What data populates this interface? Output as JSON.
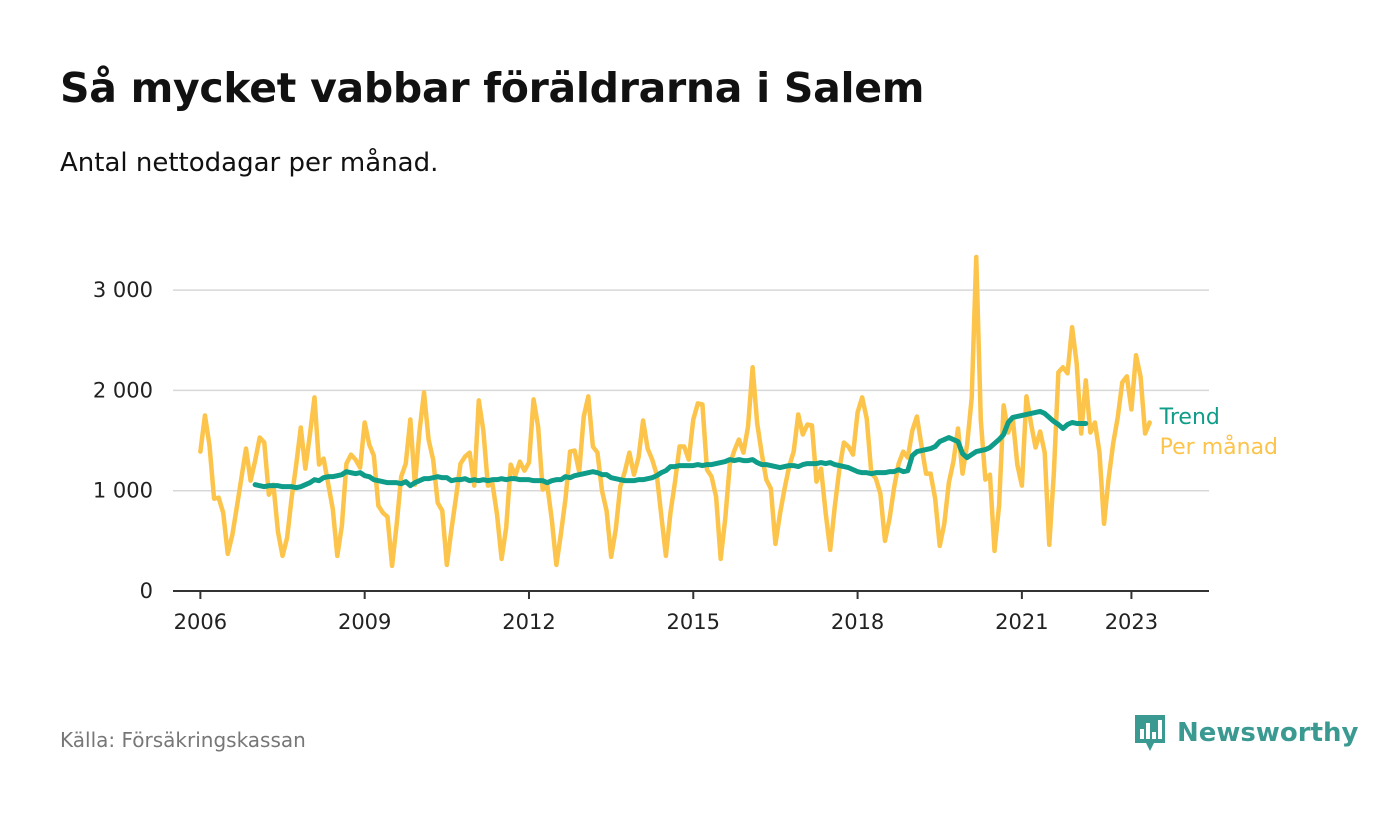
{
  "header": {
    "title": "Så mycket vabbar föräldrarna i Salem",
    "subtitle": "Antal nettodagar per månad."
  },
  "footer": {
    "source": "Källa: Försäkringskassan",
    "brand": "Newsworthy",
    "brand_icon": "bar-chart-pin-icon"
  },
  "colors": {
    "per_manad": "#fcc44a",
    "trend": "#0f9d8a",
    "grid": "#d8d8d8",
    "axis": "#333333",
    "brand": "#3a9a92"
  },
  "chart_data": {
    "type": "line",
    "x_start": "2006-01",
    "x_unit": "month",
    "xlim": [
      "2005-07",
      "2024-06"
    ],
    "ylim": [
      0,
      3200
    ],
    "x_ticks": [
      "2006",
      "2009",
      "2012",
      "2015",
      "2018",
      "2021",
      "2023"
    ],
    "y_ticks": [
      {
        "value": 0,
        "label": "0"
      },
      {
        "value": 1000,
        "label": "1 000"
      },
      {
        "value": 2000,
        "label": "2 000"
      },
      {
        "value": 3000,
        "label": "3 000"
      }
    ],
    "grid": true,
    "series": [
      {
        "name": "Per månad",
        "start": "2006-01",
        "values": [
          1390,
          1750,
          1450,
          920,
          930,
          780,
          370,
          560,
          840,
          1130,
          1420,
          1100,
          1300,
          1530,
          1480,
          960,
          1060,
          590,
          350,
          530,
          930,
          1260,
          1630,
          1220,
          1560,
          1930,
          1260,
          1320,
          1070,
          820,
          350,
          650,
          1270,
          1360,
          1310,
          1230,
          1680,
          1460,
          1350,
          850,
          780,
          740,
          250,
          660,
          1140,
          1270,
          1710,
          1060,
          1590,
          1980,
          1510,
          1310,
          880,
          800,
          260,
          610,
          930,
          1270,
          1340,
          1380,
          1050,
          1900,
          1600,
          1050,
          1070,
          760,
          320,
          630,
          1260,
          1150,
          1290,
          1200,
          1280,
          1910,
          1640,
          1010,
          1060,
          710,
          260,
          570,
          920,
          1390,
          1400,
          1190,
          1740,
          1940,
          1440,
          1380,
          1000,
          800,
          340,
          610,
          1040,
          1190,
          1380,
          1160,
          1330,
          1700,
          1420,
          1310,
          1160,
          750,
          350,
          780,
          1090,
          1440,
          1440,
          1310,
          1710,
          1870,
          1860,
          1210,
          1140,
          940,
          320,
          720,
          1260,
          1400,
          1510,
          1380,
          1640,
          2230,
          1670,
          1370,
          1110,
          1020,
          470,
          770,
          1020,
          1240,
          1390,
          1760,
          1560,
          1660,
          1650,
          1090,
          1220,
          780,
          410,
          840,
          1210,
          1480,
          1440,
          1360,
          1780,
          1930,
          1720,
          1180,
          1120,
          970,
          500,
          720,
          1030,
          1270,
          1390,
          1330,
          1600,
          1740,
          1450,
          1170,
          1170,
          920,
          450,
          670,
          1080,
          1290,
          1620,
          1170,
          1460,
          1920,
          3330,
          1700,
          1110,
          1160,
          400,
          850,
          1850,
          1580,
          1720,
          1260,
          1050,
          1940,
          1670,
          1430,
          1590,
          1380,
          460,
          1170,
          2180,
          2230,
          2170,
          2630,
          2270,
          1570,
          2100,
          1580,
          1680,
          1380,
          670,
          1120,
          1470,
          1730,
          2080,
          2140,
          1810,
          2350,
          2140,
          1570,
          1680
        ]
      },
      {
        "name": "Trend",
        "start": "2007-01",
        "values": [
          1060,
          1050,
          1040,
          1050,
          1050,
          1050,
          1040,
          1040,
          1040,
          1030,
          1040,
          1060,
          1080,
          1110,
          1100,
          1130,
          1140,
          1140,
          1150,
          1160,
          1190,
          1180,
          1170,
          1180,
          1150,
          1140,
          1110,
          1100,
          1090,
          1080,
          1080,
          1080,
          1070,
          1090,
          1050,
          1080,
          1100,
          1120,
          1120,
          1130,
          1140,
          1130,
          1130,
          1100,
          1110,
          1110,
          1120,
          1100,
          1110,
          1100,
          1110,
          1100,
          1110,
          1110,
          1120,
          1110,
          1120,
          1120,
          1110,
          1110,
          1110,
          1100,
          1100,
          1100,
          1080,
          1100,
          1110,
          1110,
          1140,
          1130,
          1150,
          1160,
          1170,
          1180,
          1190,
          1180,
          1160,
          1160,
          1130,
          1120,
          1110,
          1100,
          1100,
          1100,
          1110,
          1110,
          1120,
          1130,
          1150,
          1180,
          1200,
          1240,
          1240,
          1250,
          1250,
          1250,
          1250,
          1260,
          1250,
          1260,
          1260,
          1270,
          1280,
          1290,
          1310,
          1300,
          1310,
          1300,
          1300,
          1310,
          1280,
          1260,
          1260,
          1250,
          1240,
          1230,
          1240,
          1250,
          1250,
          1240,
          1260,
          1270,
          1270,
          1270,
          1280,
          1270,
          1280,
          1260,
          1250,
          1240,
          1230,
          1210,
          1190,
          1180,
          1180,
          1170,
          1180,
          1180,
          1180,
          1190,
          1190,
          1210,
          1190,
          1200,
          1350,
          1390,
          1400,
          1410,
          1420,
          1440,
          1490,
          1510,
          1530,
          1510,
          1490,
          1370,
          1330,
          1360,
          1390,
          1400,
          1410,
          1430,
          1470,
          1510,
          1560,
          1680,
          1730,
          1740,
          1750,
          1760,
          1770,
          1780,
          1790,
          1770,
          1730,
          1690,
          1660,
          1620,
          1660,
          1680,
          1670,
          1670,
          1670
        ]
      }
    ],
    "series_labels": [
      {
        "text": "Trend",
        "series": "Trend"
      },
      {
        "text": "Per månad",
        "series": "Per månad"
      }
    ]
  }
}
